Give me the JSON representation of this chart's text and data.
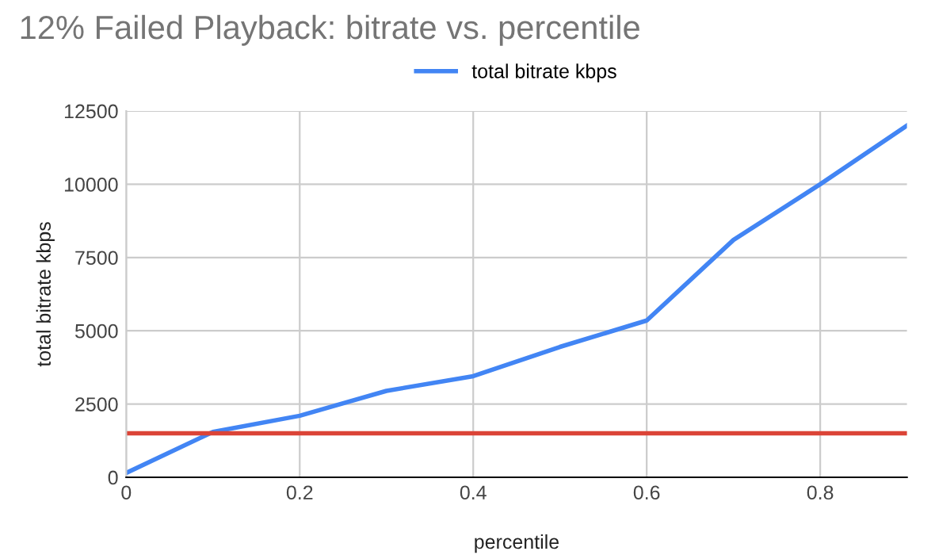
{
  "chart_data": {
    "type": "line",
    "title": "12% Failed Playback: bitrate vs. percentile",
    "xlabel": "percentile",
    "ylabel": "total bitrate kbps",
    "x": [
      0,
      0.1,
      0.2,
      0.3,
      0.4,
      0.5,
      0.6,
      0.7,
      0.8,
      0.9
    ],
    "series": [
      {
        "name": "total bitrate kbps",
        "color": "#4285f4",
        "values": [
          150,
          1550,
          2100,
          2950,
          3450,
          4450,
          5350,
          8100,
          10000,
          12000
        ]
      },
      {
        "color": "#db4437",
        "values": [
          1500,
          1500,
          1500,
          1500,
          1500,
          1500,
          1500,
          1500,
          1500,
          1500
        ]
      }
    ],
    "xlim": [
      0,
      0.9
    ],
    "xticks": [
      0,
      0.2,
      0.4,
      0.6,
      0.8
    ],
    "ylim": [
      0,
      12500
    ],
    "yticks": [
      0,
      2500,
      5000,
      7500,
      10000,
      12500
    ],
    "grid": true,
    "legend": "top",
    "marker": "none",
    "line_style": "solid"
  }
}
